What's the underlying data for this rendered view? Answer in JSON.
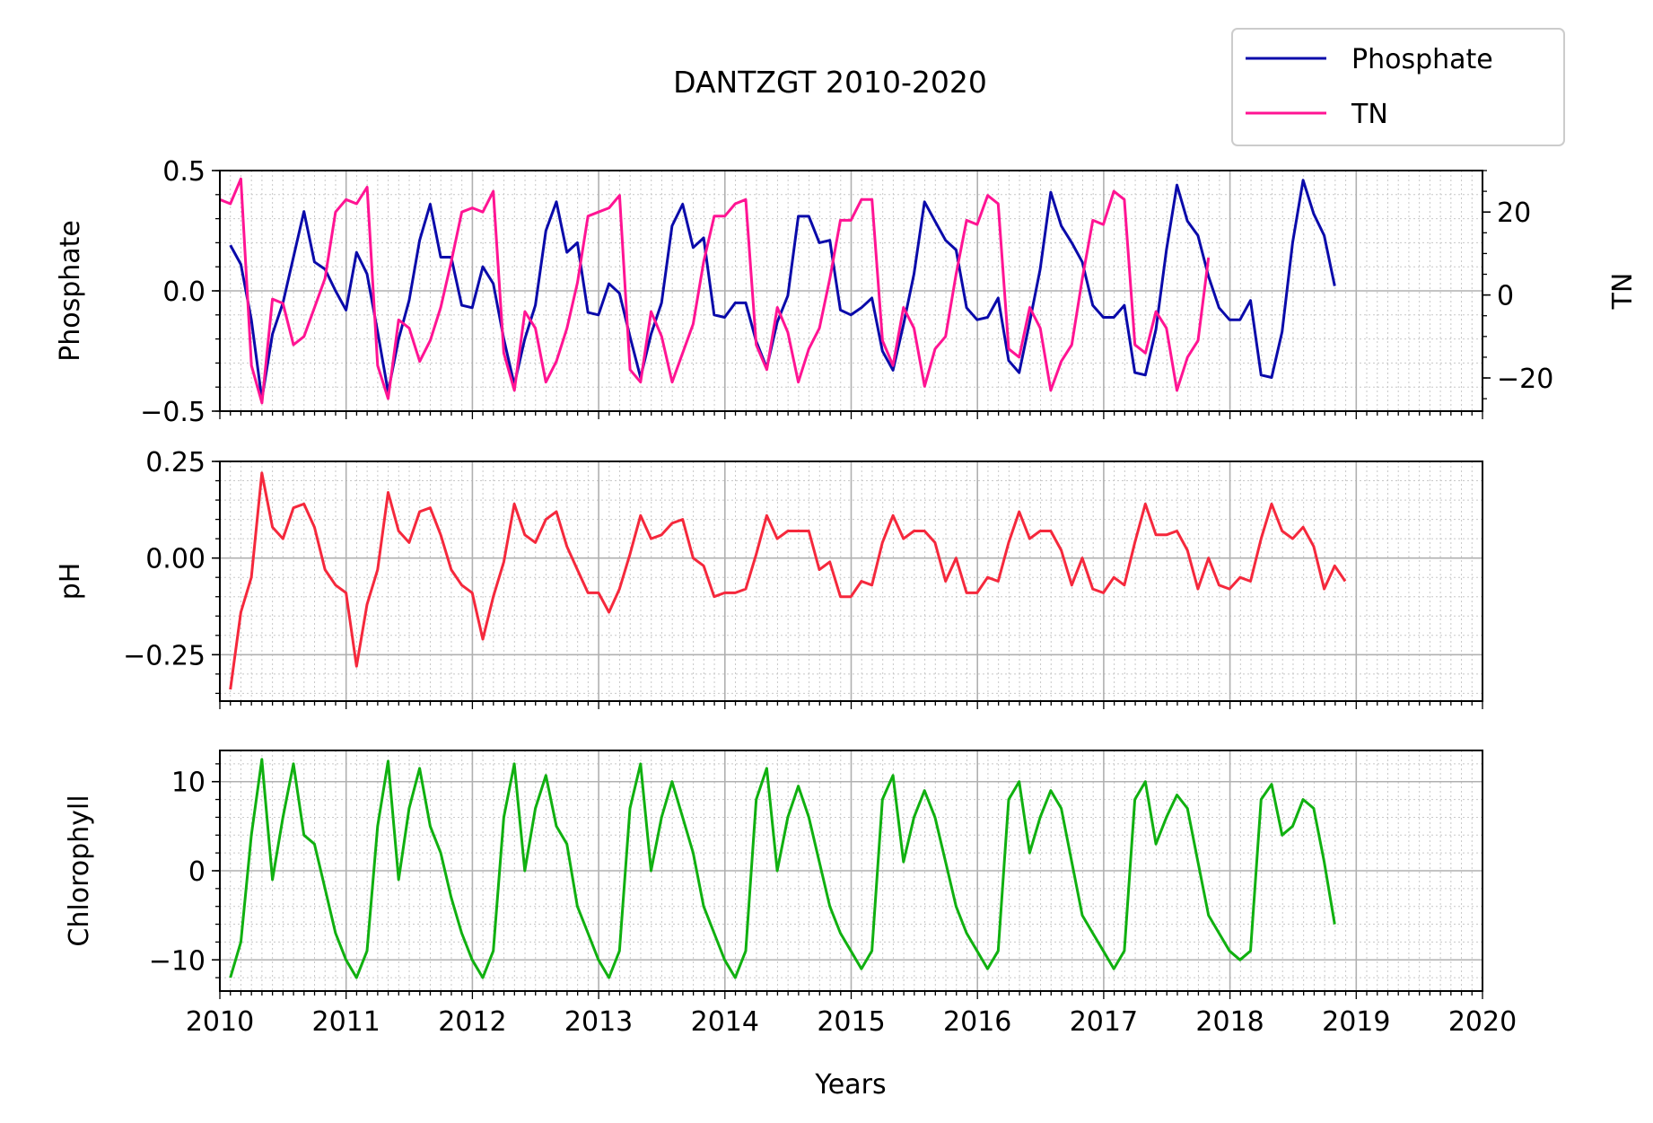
{
  "chart_data": [
    {
      "type": "line",
      "title": "DANTZGT 2010-2020",
      "xlabel": "Years",
      "ylabel": "Phosphate",
      "ylabel_right": "TN",
      "xlim": [
        2010,
        2020
      ],
      "ylim": [
        -0.5,
        0.5
      ],
      "ylim_right": [
        -28,
        30
      ],
      "x_ticks": [
        "2010",
        "2011",
        "2012",
        "2013",
        "2014",
        "2015",
        "2016",
        "2017",
        "2018",
        "2019",
        "2020"
      ],
      "y_ticks": [
        "0.5",
        "0.0",
        "−0.5"
      ],
      "y_ticks_right": [
        "20",
        "0",
        "−20"
      ],
      "grid": true,
      "legend": {
        "placement": "top-right",
        "entries": [
          "Phosphate",
          "TN"
        ]
      },
      "series": [
        {
          "name": "Phosphate",
          "axis": "left",
          "color": "#0a0aaa",
          "x_start": 2010.083,
          "x_step": 0.0833,
          "values": [
            0.19,
            0.11,
            -0.12,
            -0.45,
            -0.18,
            -0.05,
            0.14,
            0.33,
            0.12,
            0.09,
            0.0,
            -0.08,
            0.16,
            0.07,
            -0.17,
            -0.42,
            -0.2,
            -0.04,
            0.21,
            0.36,
            0.14,
            0.14,
            -0.06,
            -0.07,
            0.1,
            0.03,
            -0.2,
            -0.39,
            -0.2,
            -0.06,
            0.25,
            0.37,
            0.16,
            0.2,
            -0.09,
            -0.1,
            0.03,
            -0.01,
            -0.19,
            -0.36,
            -0.18,
            -0.05,
            0.27,
            0.36,
            0.18,
            0.22,
            -0.1,
            -0.11,
            -0.05,
            -0.05,
            -0.21,
            -0.32,
            -0.13,
            -0.02,
            0.31,
            0.31,
            0.2,
            0.21,
            -0.08,
            -0.1,
            -0.07,
            -0.03,
            -0.25,
            -0.33,
            -0.14,
            0.07,
            0.37,
            0.29,
            0.21,
            0.17,
            -0.07,
            -0.12,
            -0.11,
            -0.03,
            -0.29,
            -0.34,
            -0.13,
            0.09,
            0.41,
            0.27,
            0.2,
            0.12,
            -0.06,
            -0.11,
            -0.11,
            -0.06,
            -0.34,
            -0.35,
            -0.16,
            0.17,
            0.44,
            0.29,
            0.23,
            0.06,
            -0.07,
            -0.12,
            -0.12,
            -0.04,
            -0.35,
            -0.36,
            -0.17,
            0.2,
            0.46,
            0.32,
            0.23,
            0.02
          ]
        },
        {
          "name": "TN",
          "axis": "right",
          "color": "#ff1493",
          "x_start": 2010.0,
          "x_step": 0.0833,
          "values": [
            23,
            22,
            28,
            -17,
            -26,
            -1,
            -2,
            -12,
            -10,
            -3,
            4,
            20,
            23,
            22,
            26,
            -17,
            -25,
            -6,
            -8,
            -16,
            -11,
            -3,
            8,
            20,
            21,
            20,
            25,
            -14,
            -23,
            -4,
            -8,
            -21,
            -16,
            -8,
            3,
            19,
            20,
            21,
            24,
            -18,
            -21,
            -4,
            -10,
            -21,
            -14,
            -7,
            8,
            19,
            19,
            22,
            23,
            -12,
            -18,
            -3,
            -9,
            -21,
            -13,
            -8,
            4,
            18,
            18,
            23,
            23,
            -11,
            -17,
            -3,
            -8,
            -22,
            -13,
            -10,
            5,
            18,
            17,
            24,
            22,
            -13,
            -15,
            -3,
            -8,
            -23,
            -16,
            -12,
            4,
            18,
            17,
            25,
            23,
            -12,
            -14,
            -4,
            -8,
            -23,
            -15,
            -11,
            9
          ]
        }
      ]
    },
    {
      "type": "line",
      "ylabel": "pH",
      "xlim": [
        2010,
        2020
      ],
      "ylim": [
        -0.37,
        0.25
      ],
      "y_ticks": [
        "0.25",
        "0.00",
        "−0.25"
      ],
      "grid": true,
      "series": [
        {
          "axis": "left",
          "color": "#f5283c",
          "x_start": 2010.083,
          "x_step": 0.0833,
          "values": [
            -0.34,
            -0.14,
            -0.05,
            0.22,
            0.08,
            0.05,
            0.13,
            0.14,
            0.08,
            -0.03,
            -0.07,
            -0.09,
            -0.28,
            -0.12,
            -0.03,
            0.17,
            0.07,
            0.04,
            0.12,
            0.13,
            0.06,
            -0.03,
            -0.07,
            -0.09,
            -0.21,
            -0.1,
            -0.01,
            0.14,
            0.06,
            0.04,
            0.1,
            0.12,
            0.03,
            -0.03,
            -0.09,
            -0.09,
            -0.14,
            -0.08,
            0.01,
            0.11,
            0.05,
            0.06,
            0.09,
            0.1,
            0.0,
            -0.02,
            -0.1,
            -0.09,
            -0.09,
            -0.08,
            0.01,
            0.11,
            0.05,
            0.07,
            0.07,
            0.07,
            -0.03,
            -0.01,
            -0.1,
            -0.1,
            -0.06,
            -0.07,
            0.04,
            0.11,
            0.05,
            0.07,
            0.07,
            0.04,
            -0.06,
            0.0,
            -0.09,
            -0.09,
            -0.05,
            -0.06,
            0.04,
            0.12,
            0.05,
            0.07,
            0.07,
            0.02,
            -0.07,
            0.0,
            -0.08,
            -0.09,
            -0.05,
            -0.07,
            0.04,
            0.14,
            0.06,
            0.06,
            0.07,
            0.02,
            -0.08,
            0.0,
            -0.07,
            -0.08,
            -0.05,
            -0.06,
            0.05,
            0.14,
            0.07,
            0.05,
            0.08,
            0.03,
            -0.08,
            -0.02,
            -0.06
          ]
        }
      ]
    },
    {
      "type": "line",
      "ylabel": "Chlorophyll",
      "xlim": [
        2010,
        2020
      ],
      "ylim": [
        -13.5,
        13.5
      ],
      "y_ticks": [
        "10",
        "0",
        "−10"
      ],
      "grid": true,
      "series": [
        {
          "axis": "left",
          "color": "#10b010",
          "x_start": 2010.083,
          "x_step": 0.0833,
          "values": [
            -12,
            -8,
            4,
            12.5,
            -1,
            6,
            12,
            4,
            3,
            -2,
            -7,
            -10,
            -12,
            -9,
            5,
            12.3,
            -1,
            7,
            11.5,
            5,
            2,
            -3,
            -7,
            -10,
            -12,
            -9,
            6,
            12,
            0,
            7,
            10.7,
            5,
            3,
            -4,
            -7,
            -10,
            -12,
            -9,
            7,
            12,
            0,
            6,
            10,
            6,
            2,
            -4,
            -7,
            -10,
            -12,
            -9,
            8,
            11.5,
            0,
            6,
            9.5,
            6,
            1,
            -4,
            -7,
            -9,
            -11,
            -9,
            8,
            10.7,
            1,
            6,
            9,
            6,
            1,
            -4,
            -7,
            -9,
            -11,
            -9,
            8,
            10,
            2,
            6,
            9,
            7,
            1,
            -5,
            -7,
            -9,
            -11,
            -9,
            8,
            10,
            3,
            6,
            8.5,
            7,
            1,
            -5,
            -7,
            -9,
            -10,
            -9,
            8,
            9.7,
            4,
            5,
            8,
            7,
            1,
            -6
          ]
        }
      ]
    }
  ]
}
